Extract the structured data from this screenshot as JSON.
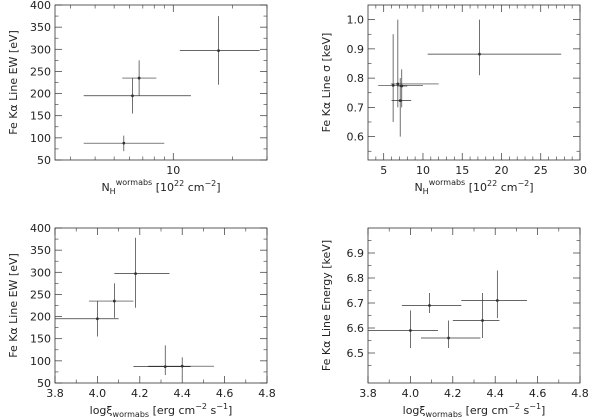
{
  "panels": [
    {
      "id": "a",
      "ylabel": "Fe Kα Line EW [eV]",
      "xlabel_parts": [
        "N",
        "H",
        "wormabs",
        "  [10",
        "22",
        " cm",
        "−2",
        "]"
      ],
      "chart_data": {
        "type": "scatter",
        "xscale": "log",
        "xlim": [
          2.5,
          30
        ],
        "ylim": [
          50,
          400
        ],
        "x_ticks": [
          10
        ],
        "x_tick_labels": [
          "10"
        ],
        "y_ticks": [
          50,
          100,
          150,
          200,
          250,
          300,
          350,
          400
        ],
        "y_tick_labels": [
          "50",
          "100",
          "150",
          "200",
          "250",
          "300",
          "350",
          "400"
        ],
        "points": [
          {
            "x": 6.2,
            "xerr": [
              3.5,
              12.3
            ],
            "y": 195,
            "yerr": [
              155,
              235
            ]
          },
          {
            "x": 6.7,
            "xerr": [
              5.5,
              8.2
            ],
            "y": 235,
            "yerr": [
              195,
              275
            ]
          },
          {
            "x": 5.6,
            "xerr": [
              3.5,
              9.0
            ],
            "y": 88,
            "yerr": [
              70,
              105
            ]
          },
          {
            "x": 17.0,
            "xerr": [
              10.8,
              27.5
            ],
            "y": 297,
            "yerr": [
              220,
              375
            ]
          }
        ]
      }
    },
    {
      "id": "b",
      "ylabel": "Fe Kα Line σ [keV]",
      "xlabel_parts": [
        "N",
        "H",
        "wormabs",
        "  [10",
        "22",
        " cm",
        "−2",
        "]"
      ],
      "chart_data": {
        "type": "scatter",
        "xscale": "linear",
        "xlim": [
          3,
          30
        ],
        "ylim": [
          0.52,
          1.05
        ],
        "x_ticks": [
          5,
          10,
          15,
          20,
          25,
          30
        ],
        "x_tick_labels": [
          "5",
          "10",
          "15",
          "20",
          "25",
          "30"
        ],
        "y_ticks": [
          0.6,
          0.7,
          0.8,
          0.9,
          1.0
        ],
        "y_tick_labels": [
          "0.6",
          "0.7",
          "0.8",
          "0.9",
          "1.0"
        ],
        "points": [
          {
            "x": 6.2,
            "xerr": [
              4.3,
              10.0
            ],
            "y": 0.775,
            "yerr": [
              0.65,
              0.95
            ]
          },
          {
            "x": 6.8,
            "xerr": [
              5.9,
              12.0
            ],
            "y": 0.78,
            "yerr": [
              0.7,
              1.0
            ]
          },
          {
            "x": 7.1,
            "xerr": [
              6.0,
              8.5
            ],
            "y": 0.723,
            "yerr": [
              0.6,
              0.8
            ]
          },
          {
            "x": 7.3,
            "xerr": [
              6.7,
              8.0
            ],
            "y": 0.773,
            "yerr": [
              0.7,
              0.83
            ]
          },
          {
            "x": 17.2,
            "xerr": [
              10.6,
              27.6
            ],
            "y": 0.882,
            "yerr": [
              0.81,
              1.0
            ]
          }
        ]
      }
    },
    {
      "id": "c",
      "ylabel": "Fe Kα Line EW [eV]",
      "xlabel_parts": [
        "logξ",
        "wormabs",
        "  [erg  cm",
        "−2",
        " s",
        "−1",
        "]"
      ],
      "chart_data": {
        "type": "scatter",
        "xscale": "linear",
        "xlim": [
          3.8,
          4.8
        ],
        "ylim": [
          50,
          400
        ],
        "x_ticks": [
          3.8,
          4.0,
          4.2,
          4.4,
          4.6,
          4.8
        ],
        "x_tick_labels": [
          "3.8",
          "4.0",
          "4.2",
          "4.4",
          "4.6",
          "4.8"
        ],
        "y_ticks": [
          50,
          100,
          150,
          200,
          250,
          300,
          350,
          400
        ],
        "y_tick_labels": [
          "50",
          "100",
          "150",
          "200",
          "250",
          "300",
          "350",
          "400"
        ],
        "points": [
          {
            "x": 4.0,
            "xerr": [
              3.8,
              4.1
            ],
            "y": 195,
            "yerr": [
              155,
              235
            ]
          },
          {
            "x": 4.08,
            "xerr": [
              3.96,
              4.17
            ],
            "y": 235,
            "yerr": [
              197,
              275
            ]
          },
          {
            "x": 4.18,
            "xerr": [
              4.08,
              4.34
            ],
            "y": 297,
            "yerr": [
              220,
              378
            ]
          },
          {
            "x": 4.32,
            "xerr": [
              4.17,
              4.44
            ],
            "y": 87,
            "yerr": [
              68,
              135
            ]
          },
          {
            "x": 4.4,
            "xerr": [
              4.24,
              4.55
            ],
            "y": 88,
            "yerr": [
              65,
              108
            ]
          }
        ]
      }
    },
    {
      "id": "d",
      "ylabel": "Fe Kα Line Energy [keV]",
      "xlabel_parts": [
        "logξ",
        "wormabs",
        "  [erg  cm",
        "−2",
        " s",
        "−1",
        "]"
      ],
      "chart_data": {
        "type": "scatter",
        "xscale": "linear",
        "xlim": [
          3.8,
          4.8
        ],
        "ylim": [
          6.38,
          7.0
        ],
        "x_ticks": [
          3.8,
          4.0,
          4.2,
          4.4,
          4.6,
          4.8
        ],
        "x_tick_labels": [
          "3.8",
          "4.0",
          "4.2",
          "4.4",
          "4.6",
          "4.8"
        ],
        "y_ticks": [
          6.5,
          6.6,
          6.7,
          6.8,
          6.9
        ],
        "y_tick_labels": [
          "6.5",
          "6.6",
          "6.7",
          "6.8",
          "6.9"
        ],
        "points": [
          {
            "x": 4.0,
            "xerr": [
              3.8,
              4.13
            ],
            "y": 6.59,
            "yerr": [
              6.52,
              6.67
            ]
          },
          {
            "x": 4.09,
            "xerr": [
              3.96,
              4.24
            ],
            "y": 6.69,
            "yerr": [
              6.66,
              6.74
            ]
          },
          {
            "x": 4.18,
            "xerr": [
              4.05,
              4.33
            ],
            "y": 6.56,
            "yerr": [
              6.52,
              6.63
            ]
          },
          {
            "x": 4.34,
            "xerr": [
              4.2,
              4.42
            ],
            "y": 6.63,
            "yerr": [
              6.56,
              6.74
            ]
          },
          {
            "x": 4.41,
            "xerr": [
              4.24,
              4.55
            ],
            "y": 6.71,
            "yerr": [
              6.64,
              6.83
            ]
          }
        ]
      }
    }
  ]
}
